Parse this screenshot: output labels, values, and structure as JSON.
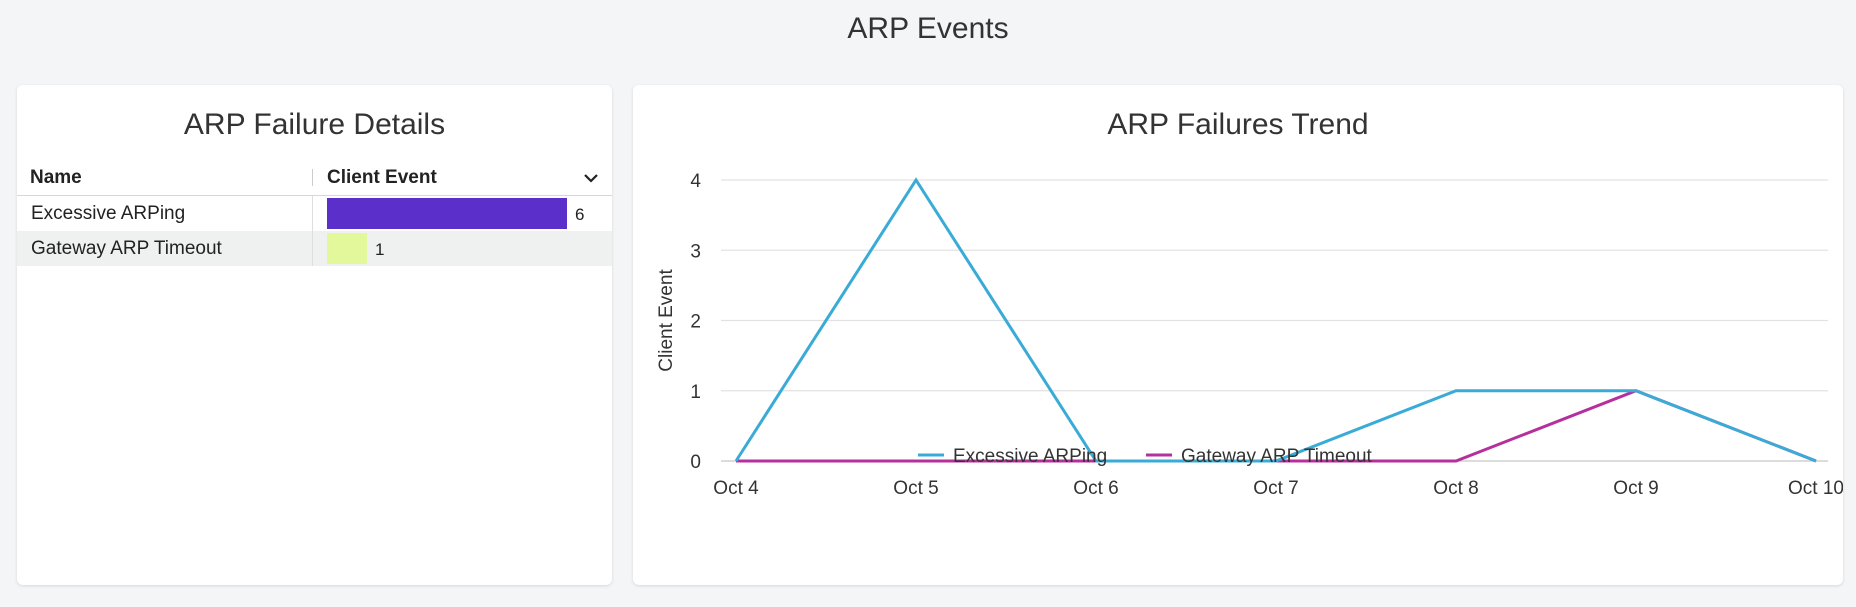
{
  "page": {
    "title": "ARP Events"
  },
  "details": {
    "title": "ARP Failure Details",
    "columns": {
      "name": "Name",
      "event": "Client Event"
    },
    "rows": [
      {
        "name": "Excessive ARPing",
        "value": 6,
        "value_label": "6",
        "color": "#5b2fc9"
      },
      {
        "name": "Gateway ARP Timeout",
        "value": 1,
        "value_label": "1",
        "color": "#e2f89a"
      }
    ],
    "max_value": 6
  },
  "trend": {
    "title": "ARP Failures Trend",
    "legend": [
      "Excessive ARPing",
      "Gateway ARP Timeout"
    ]
  },
  "chart_data": {
    "type": "line",
    "title": "ARP Failures Trend",
    "xlabel": "",
    "ylabel": "Client Event",
    "x": [
      "Oct 4",
      "Oct 5",
      "Oct 6",
      "Oct 7",
      "Oct 8",
      "Oct 9",
      "Oct 10"
    ],
    "ylim": [
      0,
      4
    ],
    "yticks": [
      0,
      1,
      2,
      3,
      4
    ],
    "grid": true,
    "legend_position": "bottom",
    "series": [
      {
        "name": "Excessive ARPing",
        "values": [
          0,
          4,
          0,
          0,
          1,
          1,
          0
        ],
        "color": "#3aabd6"
      },
      {
        "name": "Gateway ARP Timeout",
        "values": [
          0,
          0,
          0,
          0,
          0,
          1,
          0
        ],
        "color": "#b5309c"
      }
    ]
  }
}
